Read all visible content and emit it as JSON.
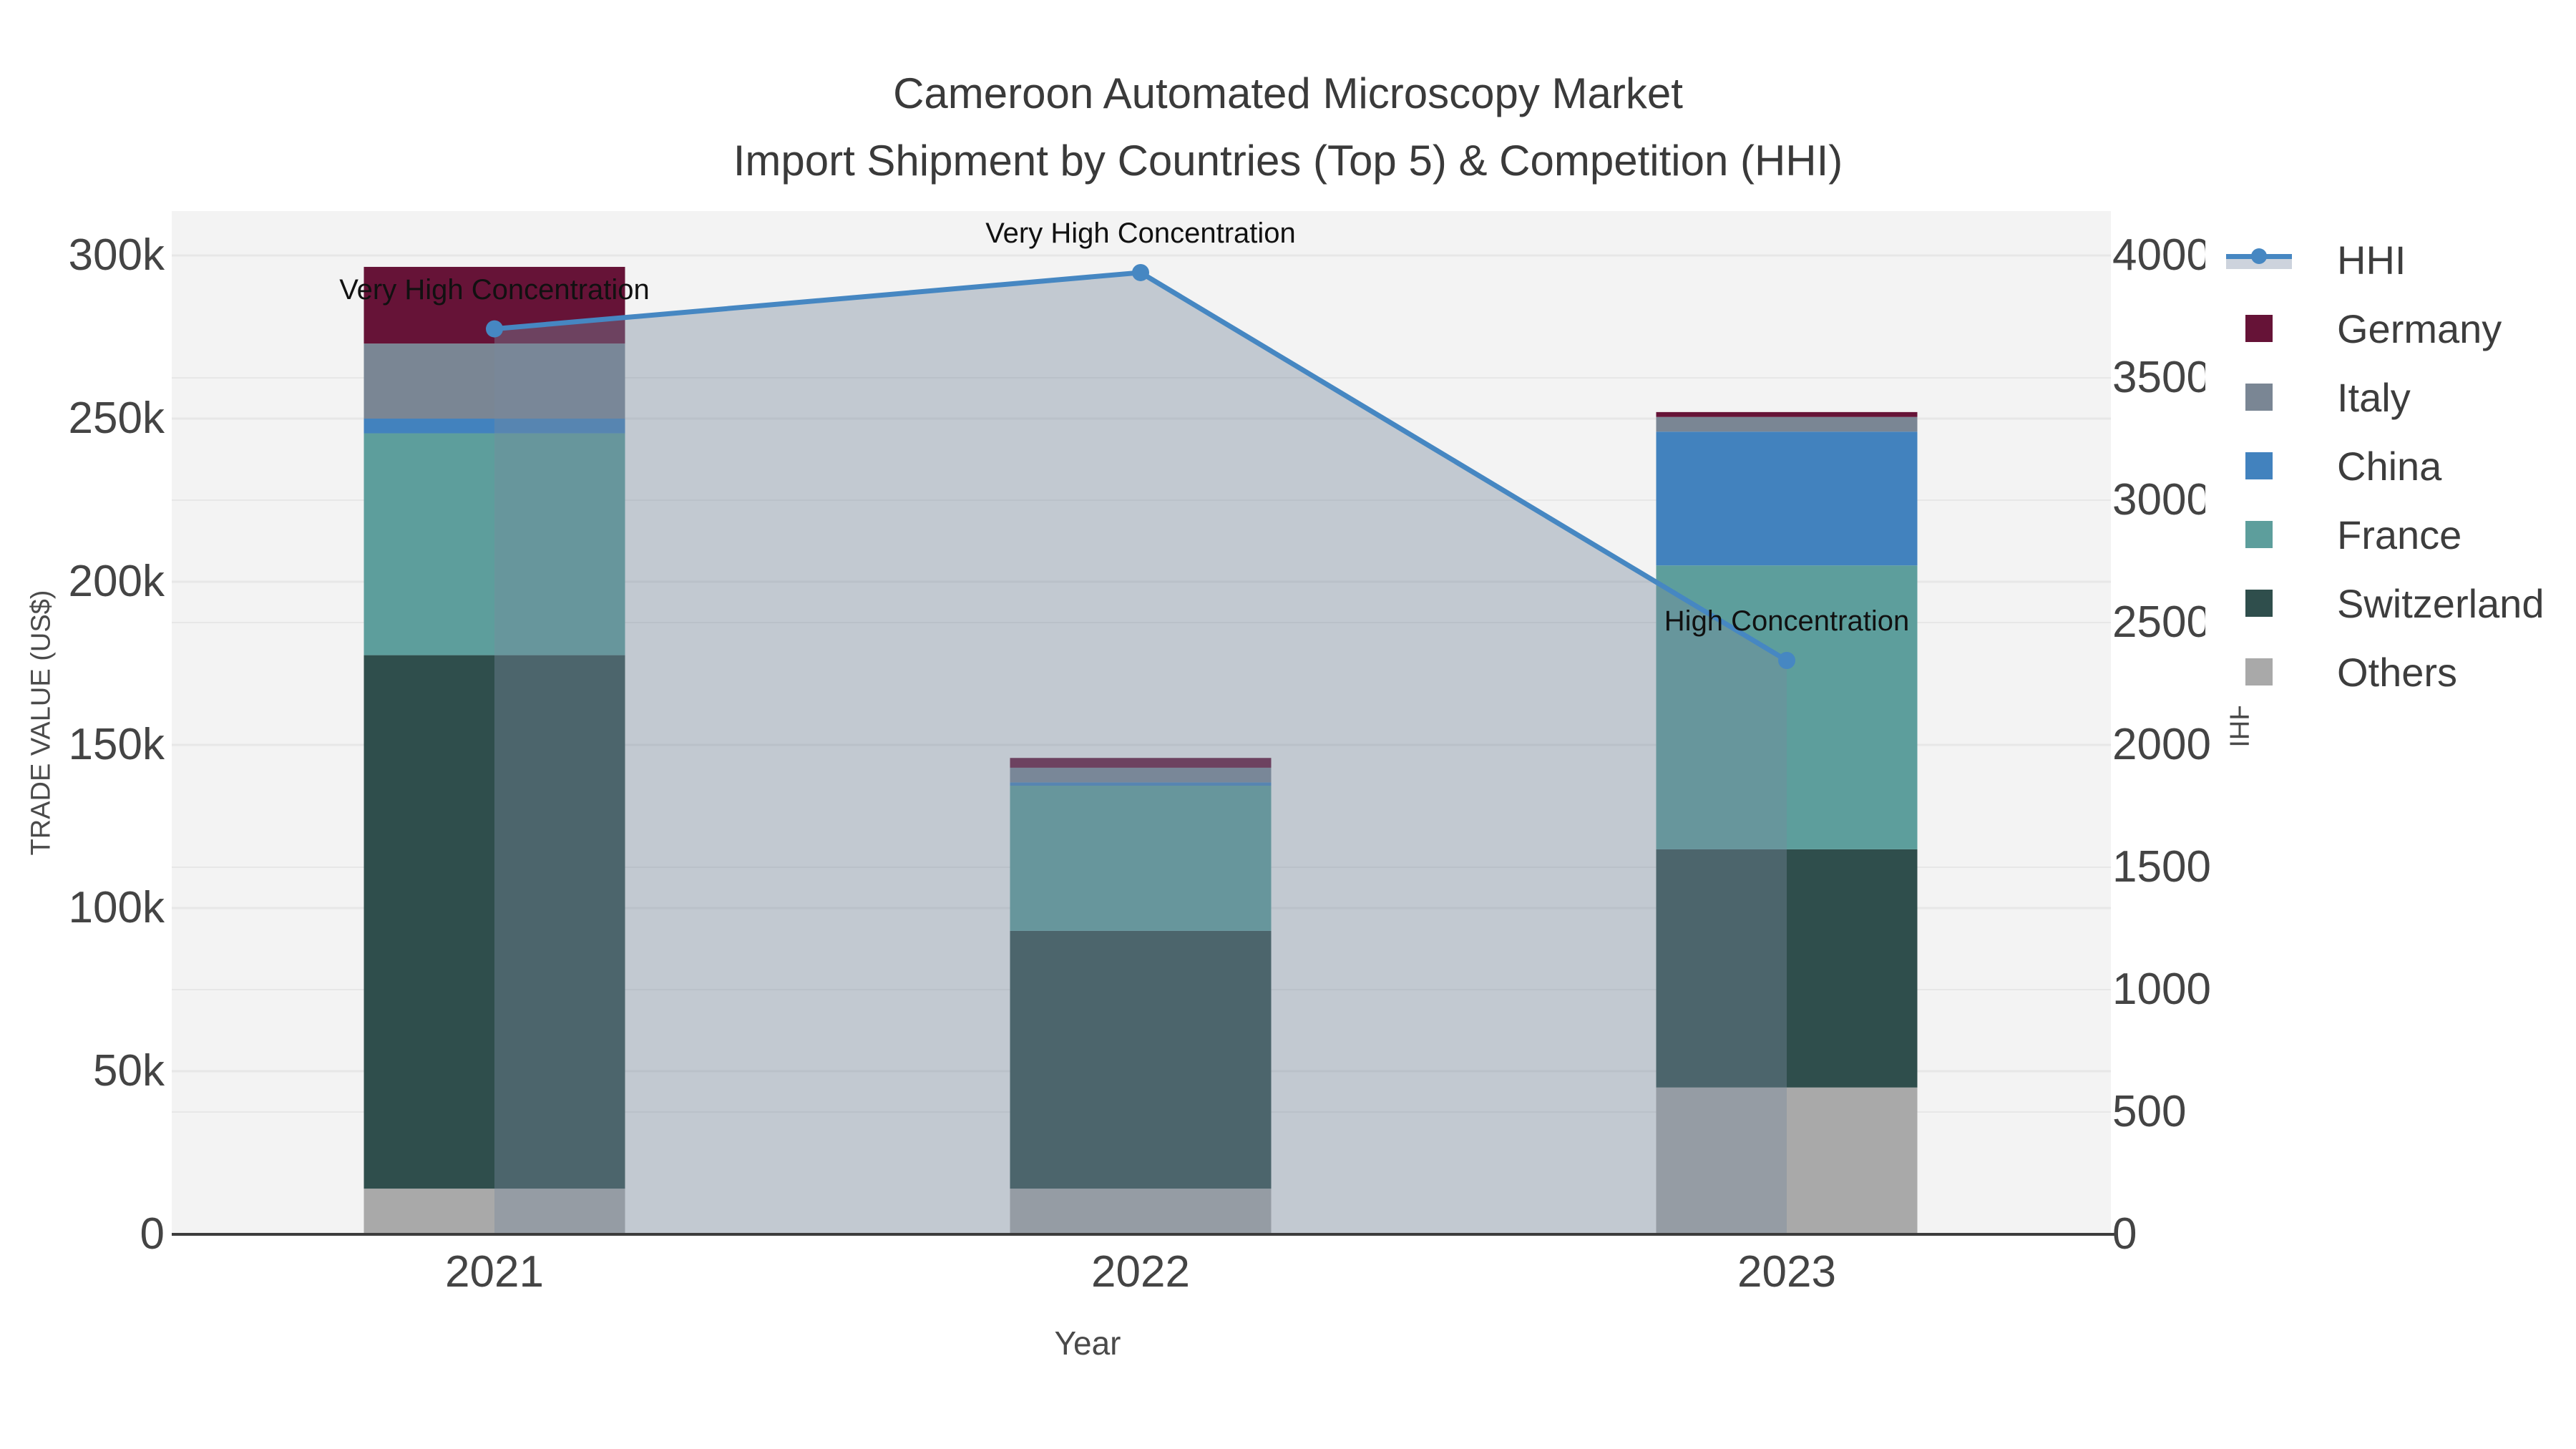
{
  "title": {
    "line1": "Cameroon Automated Microscopy Market",
    "line2": "Import Shipment by Countries (Top 5) & Competition (HHI)"
  },
  "axes": {
    "x": {
      "label": "Year",
      "categories": [
        "2021",
        "2022",
        "2023"
      ]
    },
    "y_left": {
      "label": "TRADE VALUE (US$)",
      "tick_labels": [
        "0",
        "50k",
        "100k",
        "150k",
        "200k",
        "250k",
        "300k"
      ],
      "tick_values": [
        0,
        50000,
        100000,
        150000,
        200000,
        250000,
        300000
      ],
      "max": 300000
    },
    "y_right": {
      "label": "HHI",
      "tick_labels": [
        "0",
        "500",
        "1000",
        "1500",
        "2000",
        "2500",
        "3000",
        "3500",
        "4000"
      ],
      "tick_values": [
        0,
        500,
        1000,
        1500,
        2000,
        2500,
        3000,
        3500,
        4000
      ],
      "max": 4000
    }
  },
  "legend_items": [
    {
      "label": "HHI",
      "type": "line"
    },
    {
      "label": "Germany",
      "type": "swatch",
      "color": "#661337"
    },
    {
      "label": "Italy",
      "type": "swatch",
      "color": "#7a8694"
    },
    {
      "label": "China",
      "type": "swatch",
      "color": "#4282be"
    },
    {
      "label": "France",
      "type": "swatch",
      "color": "#5d9e9c"
    },
    {
      "label": "Switzerland",
      "type": "swatch",
      "color": "#2f4e4c"
    },
    {
      "label": "Others",
      "type": "swatch",
      "color": "#a9a9a9"
    }
  ],
  "chart_data": {
    "type": "bar+line",
    "categories": [
      "2021",
      "2022",
      "2023"
    ],
    "stack_order_note": "bars stacked bottom-to-top: Others, Switzerland, France, China, Italy, Germany",
    "series": [
      {
        "name": "Others",
        "color": "#a9a9a9",
        "values": [
          14000,
          14000,
          45000
        ]
      },
      {
        "name": "Switzerland",
        "color": "#2f4e4c",
        "values": [
          163500,
          79000,
          73000
        ]
      },
      {
        "name": "France",
        "color": "#5d9e9c",
        "values": [
          68000,
          44500,
          87000
        ]
      },
      {
        "name": "China",
        "color": "#4282be",
        "values": [
          4500,
          1000,
          41000
        ]
      },
      {
        "name": "Italy",
        "color": "#7a8694",
        "values": [
          23000,
          4500,
          4500
        ]
      },
      {
        "name": "Germany",
        "color": "#661337",
        "values": [
          23500,
          3000,
          1500
        ]
      }
    ],
    "totals": [
      296500,
      146000,
      252000
    ],
    "line": {
      "name": "HHI",
      "axis": "right",
      "values": [
        3700,
        3930,
        2345
      ]
    },
    "annotations": [
      "Very High Concentration",
      "Very High Concentration",
      "High Concentration"
    ],
    "xlabel": "Year",
    "ylabel_left": "TRADE VALUE (US$)",
    "ylabel_right": "HHI",
    "ylim_left": [
      0,
      300000
    ],
    "ylim_right": [
      0,
      4000
    ],
    "grid": true,
    "legend_position": "right"
  },
  "colors": {
    "hhi_line": "#4687c2",
    "hhi_area_fill": "rgba(120,138,158,0.40)",
    "plot_bg": "#f3f3f3",
    "grid": "#e7e7e7",
    "axis_line": "#3c3c3c",
    "tick_text": "#444444",
    "title_text": "#3a3a3a",
    "annotation_text": "#111111"
  }
}
